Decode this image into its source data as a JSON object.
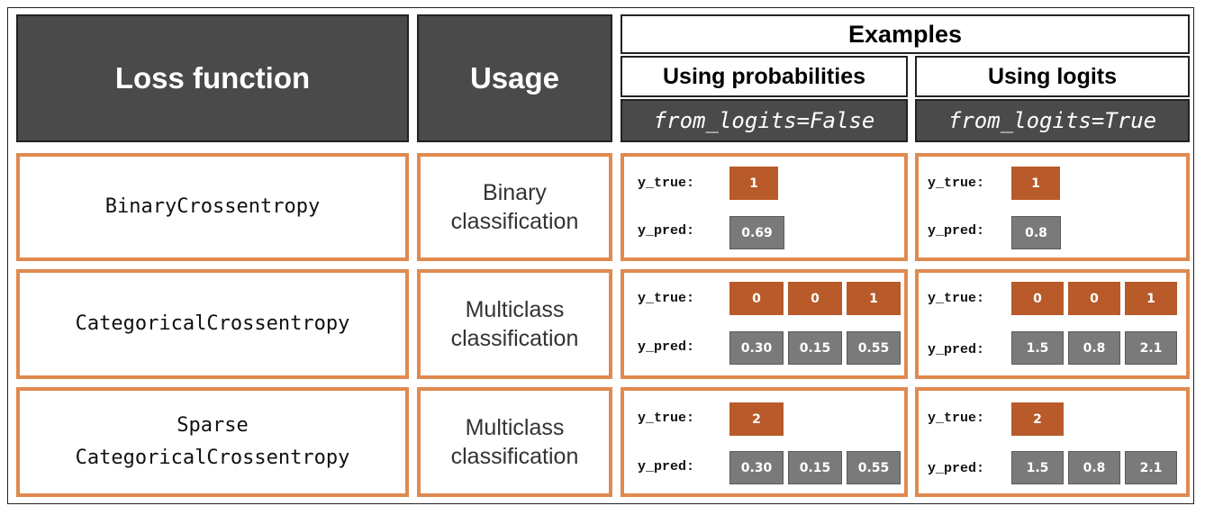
{
  "headers": {
    "loss_function": "Loss function",
    "usage": "Usage",
    "examples": "Examples",
    "probabilities": "Using probabilities",
    "logits": "Using logits",
    "prob_code": "from_logits=False",
    "logit_code": "from_logits=True"
  },
  "labels": {
    "y_true": "y_true:",
    "y_pred": "y_pred:"
  },
  "rows": [
    {
      "loss": [
        "BinaryCrossentropy"
      ],
      "usage": [
        "Binary",
        "classification"
      ],
      "prob": {
        "y_true": [
          "1"
        ],
        "y_pred": [
          "0.69"
        ]
      },
      "logit": {
        "y_true": [
          "1"
        ],
        "y_pred": [
          "0.8"
        ]
      }
    },
    {
      "loss": [
        "CategoricalCrossentropy"
      ],
      "usage": [
        "Multiclass",
        "classification"
      ],
      "prob": {
        "y_true": [
          "0",
          "0",
          "1"
        ],
        "y_pred": [
          "0.30",
          "0.15",
          "0.55"
        ]
      },
      "logit": {
        "y_true": [
          "0",
          "0",
          "1"
        ],
        "y_pred": [
          "1.5",
          "0.8",
          "2.1"
        ]
      }
    },
    {
      "loss": [
        "Sparse",
        "CategoricalCrossentropy"
      ],
      "usage": [
        "Multiclass",
        "classification"
      ],
      "prob": {
        "y_true": [
          "2"
        ],
        "y_pred": [
          "0.30",
          "0.15",
          "0.55"
        ]
      },
      "logit": {
        "y_true": [
          "2"
        ],
        "y_pred": [
          "1.5",
          "0.8",
          "2.1"
        ]
      }
    }
  ],
  "colors": {
    "true_chip": "#b85a2a",
    "pred_chip": "#7a7a7a",
    "cell_border": "#e08a4f",
    "header_dark": "#4a4a4a"
  }
}
